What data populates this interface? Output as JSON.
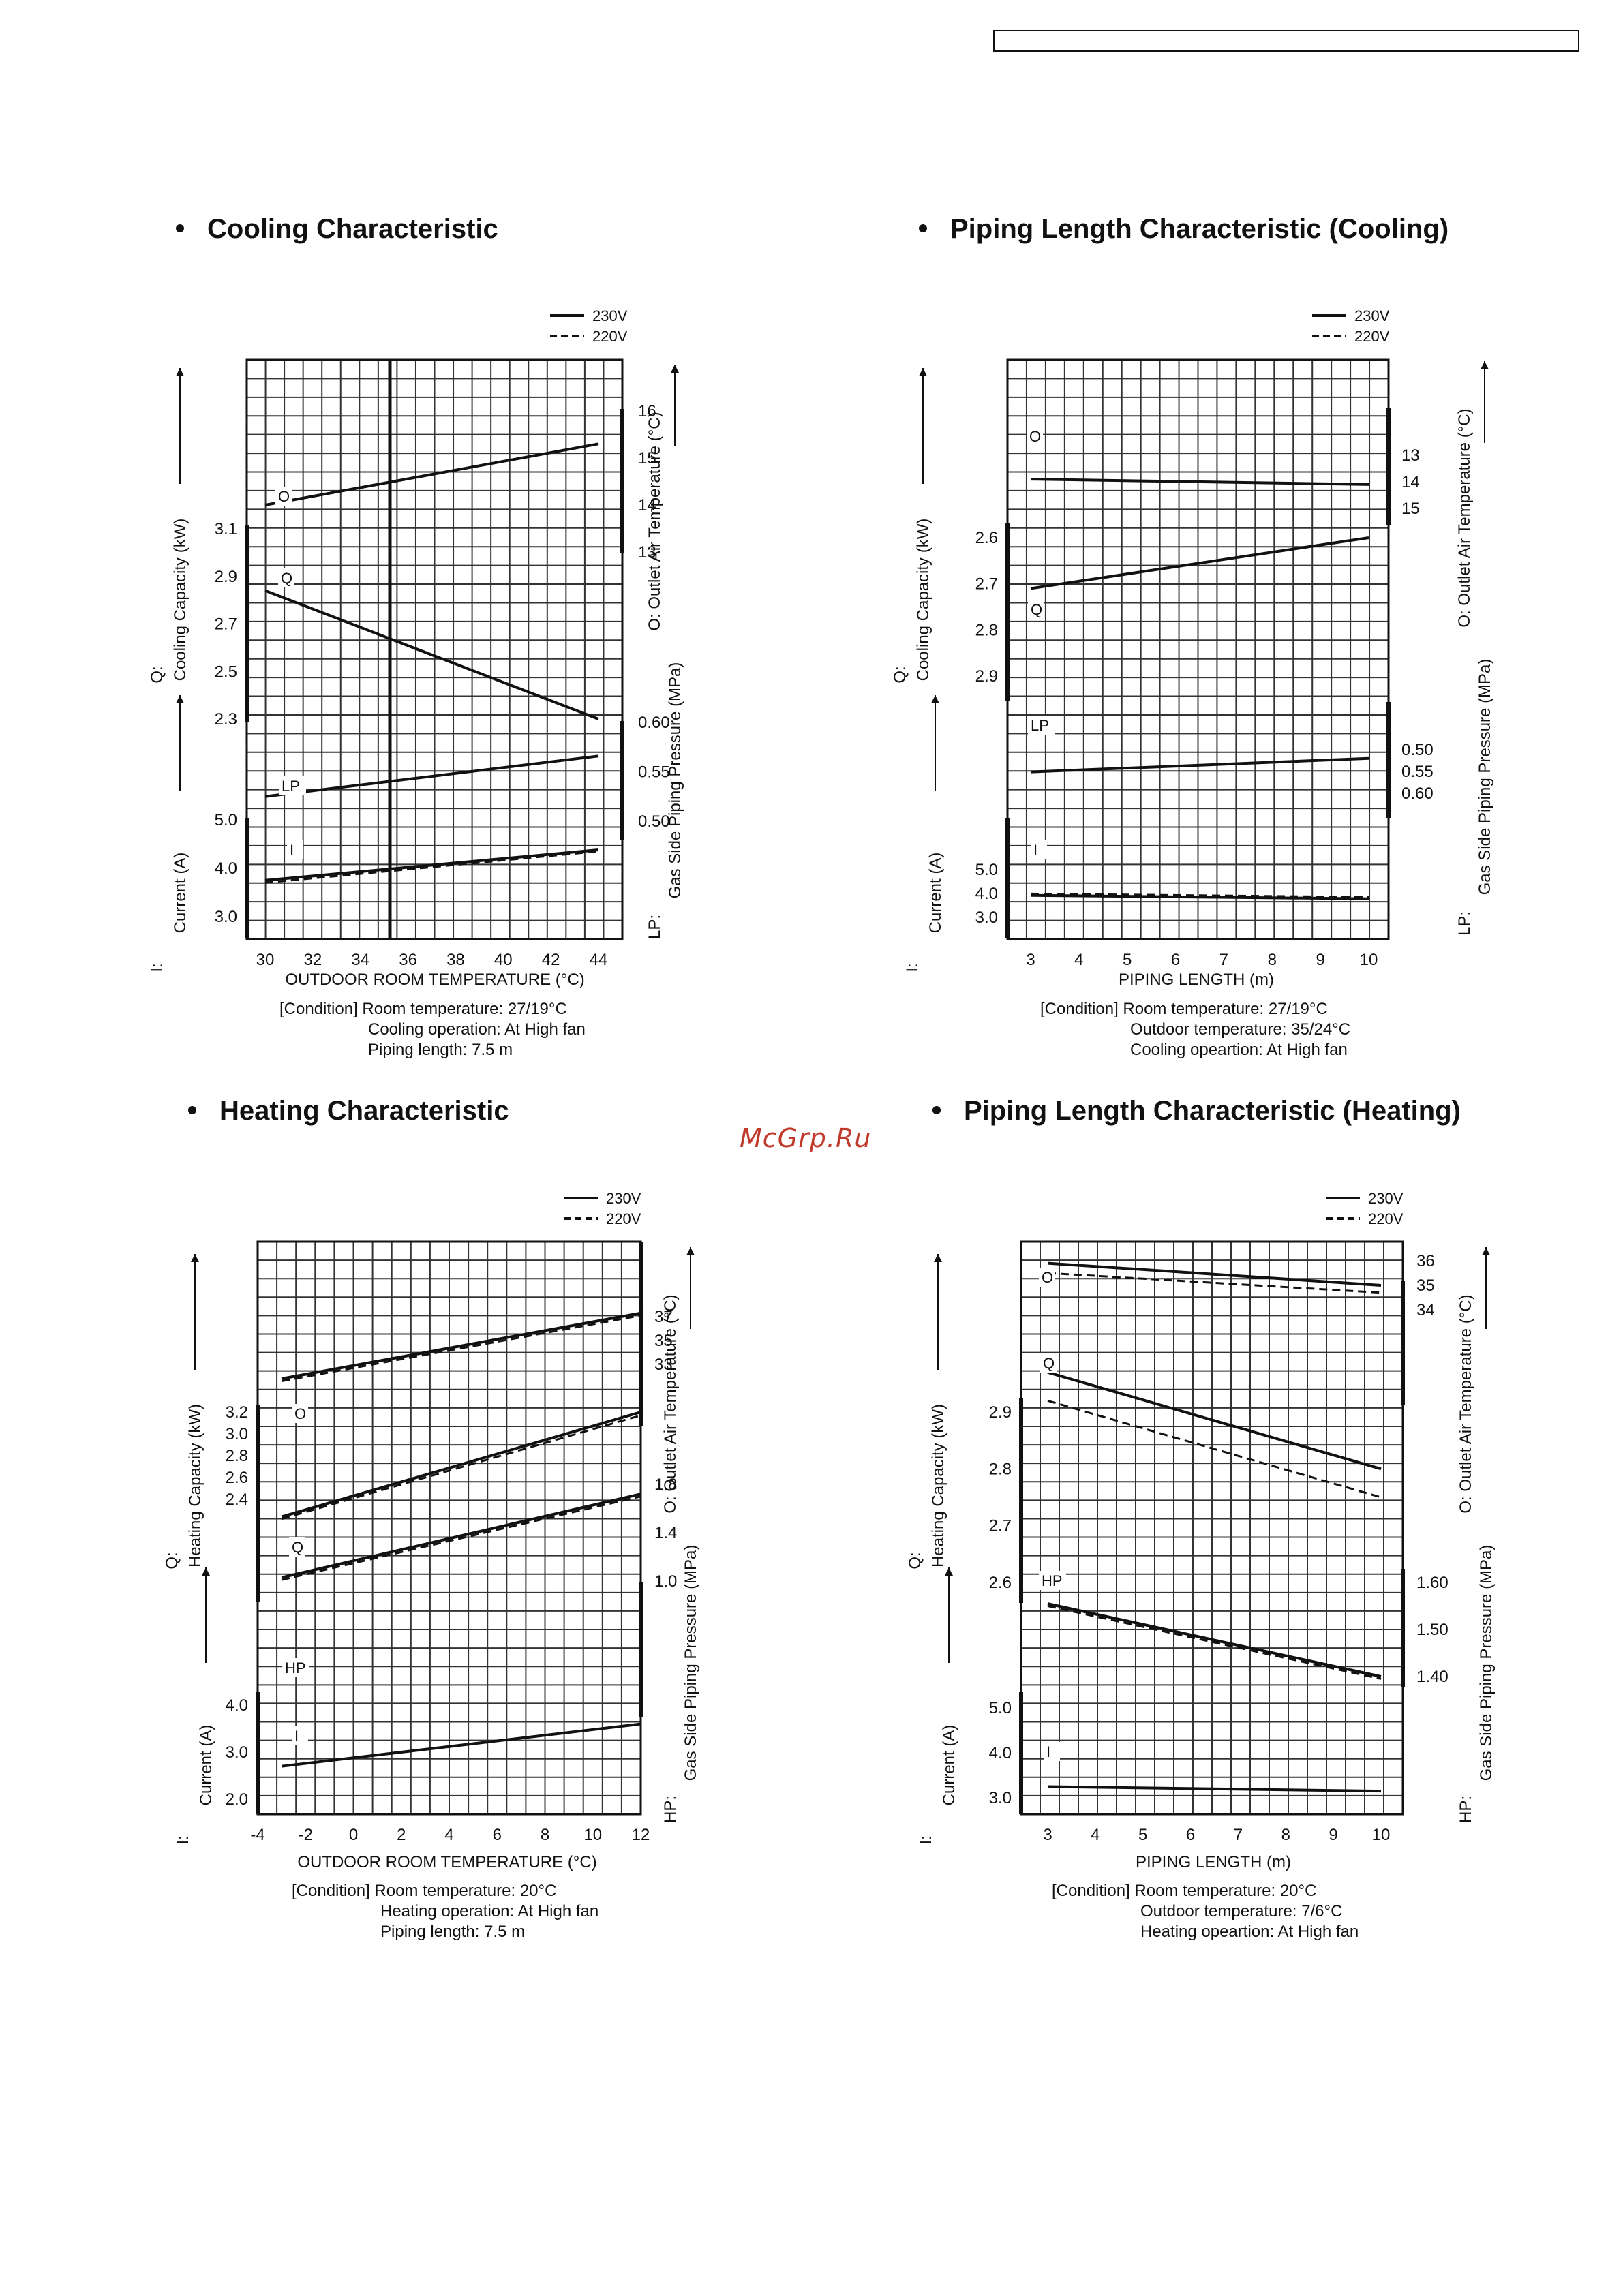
{
  "watermark": "McGrp.Ru",
  "legend": {
    "solid": "230V",
    "dashed": "220V"
  },
  "colors": {
    "ink": "#111111",
    "grid": "#333333",
    "watermark": "#c0392b"
  },
  "chart_data": [
    {
      "type": "line",
      "title": "Cooling Characteristic",
      "xlabel": "OUTDOOR  ROOM TEMPERATURE (°C)",
      "x_ticks": [
        "30",
        "32",
        "34",
        "36",
        "38",
        "40",
        "42",
        "44"
      ],
      "x_range": [
        29,
        45.5
      ],
      "left_axes": [
        {
          "prefix": "Q:",
          "label": "Cooling Capacity (kW)",
          "ticks": [
            "3.1",
            "2.9",
            "2.7",
            "2.5",
            "2.3"
          ],
          "range": [
            2.3,
            3.1
          ]
        },
        {
          "prefix": "I:",
          "label": "Current (A)",
          "ticks": [
            "5.0",
            "4.0",
            "3.0"
          ],
          "range": [
            3.0,
            5.0
          ]
        }
      ],
      "right_axes": [
        {
          "label": "O: Outlet Air Temperature (°C)",
          "ticks": [
            "16",
            "15",
            "14",
            "13"
          ],
          "range": [
            13,
            16
          ]
        },
        {
          "label": "LP: Gas Side Piping Pressure (MPa)",
          "ticks": [
            "0.60",
            "0.55",
            "0.50"
          ],
          "range": [
            0.5,
            0.6
          ]
        }
      ],
      "curve_labels": [
        "O",
        "Q",
        "LP",
        "I"
      ],
      "series": [
        {
          "name": "O",
          "axis": "O",
          "x": [
            30,
            44
          ],
          "y_230V": [
            14.0,
            15.3
          ]
        },
        {
          "name": "Q",
          "axis": "Q",
          "x": [
            30,
            44
          ],
          "y_230V": [
            2.84,
            2.3
          ]
        },
        {
          "name": "LP",
          "axis": "LP",
          "x": [
            30,
            44
          ],
          "y_230V": [
            0.525,
            0.566
          ]
        },
        {
          "name": "I",
          "axis": "I",
          "x": [
            30,
            44
          ],
          "y_230V": [
            3.75,
            4.38
          ],
          "y_220V": [
            3.7,
            4.35
          ]
        }
      ],
      "condition": [
        "[Condition]  Room temperature: 27/19°C",
        "Cooling operation: At High fan",
        "Piping length: 7.5 m"
      ]
    },
    {
      "type": "line",
      "title": "Piping Length Characteristic (Cooling)",
      "xlabel": "PIPING LENGTH (m)",
      "x_ticks": [
        "3",
        "4",
        "5",
        "6",
        "7",
        "8",
        "9",
        "10"
      ],
      "x_range": [
        2.5,
        11
      ],
      "left_axes": [
        {
          "prefix": "Q:",
          "label": "Cooling Capacity (kW)",
          "ticks": [
            "2.9",
            "2.8",
            "2.7",
            "2.6"
          ],
          "range": [
            2.6,
            2.9
          ]
        },
        {
          "prefix": "I:",
          "label": "Current (A)",
          "ticks": [
            "5.0",
            "4.0",
            "3.0"
          ],
          "range": [
            3.0,
            5.0
          ]
        }
      ],
      "right_axes": [
        {
          "label": "O: Outlet Air Temperature (°C)",
          "ticks": [
            "15",
            "14",
            "13"
          ],
          "range": [
            13,
            15
          ]
        },
        {
          "label": "LP: Gas Side Piping Pressure (MPa)",
          "ticks": [
            "0.60",
            "0.55",
            "0.50"
          ],
          "range": [
            0.5,
            0.6
          ]
        }
      ],
      "curve_labels": [
        "O",
        "Q",
        "LP",
        "I"
      ],
      "series": [
        {
          "name": "O",
          "axis": "O",
          "x": [
            3,
            10
          ],
          "y_230V": [
            13.9,
            14.1
          ]
        },
        {
          "name": "Q",
          "axis": "Q",
          "x": [
            3,
            10
          ],
          "y_230V": [
            2.71,
            2.6
          ]
        },
        {
          "name": "LP",
          "axis": "LP",
          "x": [
            3,
            10
          ],
          "y_230V": [
            0.551,
            0.52
          ]
        },
        {
          "name": "I",
          "axis": "I",
          "x": [
            3,
            10
          ],
          "y_230V": [
            3.92,
            3.78
          ],
          "y_220V": [
            3.99,
            3.85
          ]
        }
      ],
      "condition": [
        "[Condition]  Room temperature: 27/19°C",
        "Outdoor temperature: 35/24°C",
        "Cooling opeartion: At High fan"
      ]
    },
    {
      "type": "line",
      "title": "Heating Characteristic",
      "xlabel": "OUTDOOR  ROOM TEMPERATURE (°C)",
      "x_ticks": [
        "-4",
        "-2",
        "0",
        "2",
        "4",
        "6",
        "8",
        "10",
        "12"
      ],
      "x_range": [
        -4,
        12
      ],
      "left_axes": [
        {
          "prefix": "Q:",
          "label": "Heating Capacity (kW)",
          "ticks": [
            "3.2",
            "3.0",
            "2.8",
            "2.6",
            "2.4"
          ],
          "range": [
            2.4,
            3.2
          ]
        },
        {
          "prefix": "I:",
          "label": "Current (A)",
          "ticks": [
            "4.0",
            "3.0",
            "2.0"
          ],
          "range": [
            2.0,
            4.0
          ]
        }
      ],
      "right_axes": [
        {
          "label": "O: Outlet Air Temperature (°C)",
          "ticks": [
            "37",
            "35",
            "33"
          ],
          "range": [
            33,
            37
          ]
        },
        {
          "label": "HP: Gas Side Piping Pressure (MPa)",
          "ticks": [
            "1.8",
            "1.4",
            "1.0"
          ],
          "range": [
            1.0,
            1.8
          ]
        }
      ],
      "curve_labels": [
        "O",
        "Q",
        "HP",
        "I"
      ],
      "series": [
        {
          "name": "O",
          "axis": "O",
          "x": [
            -3,
            12
          ],
          "y_230V": [
            31.8,
            37.3
          ],
          "y_220V": [
            31.6,
            37.1
          ]
        },
        {
          "name": "Q",
          "axis": "Q",
          "x": [
            -3,
            12
          ],
          "y_230V": [
            2.24,
            3.2
          ],
          "y_220V": [
            2.22,
            3.17
          ]
        },
        {
          "name": "HP",
          "axis": "HP",
          "x": [
            -3,
            12
          ],
          "y_230V": [
            1.03,
            1.72
          ],
          "y_220V": [
            1.01,
            1.7
          ]
        },
        {
          "name": "I",
          "axis": "I",
          "x": [
            -3,
            12
          ],
          "y_230V": [
            2.7,
            3.6
          ]
        }
      ],
      "condition": [
        "[Condition]  Room temperature: 20°C",
        "Heating operation: At High fan",
        "Piping length: 7.5 m"
      ]
    },
    {
      "type": "line",
      "title": "Piping Length Characteristic (Heating)",
      "xlabel": "PIPING LENGTH (m)",
      "x_ticks": [
        "3",
        "4",
        "5",
        "6",
        "7",
        "8",
        "9",
        "10"
      ],
      "x_range": [
        2.5,
        10.5
      ],
      "left_axes": [
        {
          "prefix": "Q:",
          "label": "Heating Capacity (kW)",
          "ticks": [
            "2.9",
            "2.8",
            "2.7",
            "2.6"
          ],
          "range": [
            2.6,
            2.9
          ]
        },
        {
          "prefix": "I:",
          "label": "Current (A)",
          "ticks": [
            "5.0",
            "4.0",
            "3.0"
          ],
          "range": [
            3.0,
            5.0
          ]
        }
      ],
      "right_axes": [
        {
          "label": "O: Outlet Air Temperature (°C)",
          "ticks": [
            "36",
            "35",
            "34"
          ],
          "range": [
            34,
            36
          ]
        },
        {
          "label": "HP: Gas Side Piping Pressure (MPa)",
          "ticks": [
            "1.60",
            "1.50",
            "1.40"
          ],
          "range": [
            1.4,
            1.6
          ]
        }
      ],
      "curve_labels": [
        "O",
        "Q",
        "HP",
        "I"
      ],
      "series": [
        {
          "name": "O",
          "axis": "O",
          "x": [
            3,
            10
          ],
          "y_230V": [
            35.9,
            35.0
          ],
          "y_220V": [
            35.5,
            34.7
          ]
        },
        {
          "name": "Q",
          "axis": "Q",
          "x": [
            3,
            10
          ],
          "y_230V": [
            2.97,
            2.8
          ],
          "y_220V": [
            2.92,
            2.75
          ]
        },
        {
          "name": "HP",
          "axis": "HP",
          "x": [
            3,
            10
          ],
          "y_230V": [
            1.555,
            1.4
          ],
          "y_220V": [
            1.55,
            1.395
          ]
        },
        {
          "name": "I",
          "axis": "I",
          "x": [
            3,
            10
          ],
          "y_230V": [
            3.25,
            3.15
          ]
        }
      ],
      "condition": [
        "[Condition]  Room temperature: 20°C",
        "Outdoor temperature: 7/6°C",
        "Heating opeartion: At High fan"
      ]
    }
  ]
}
